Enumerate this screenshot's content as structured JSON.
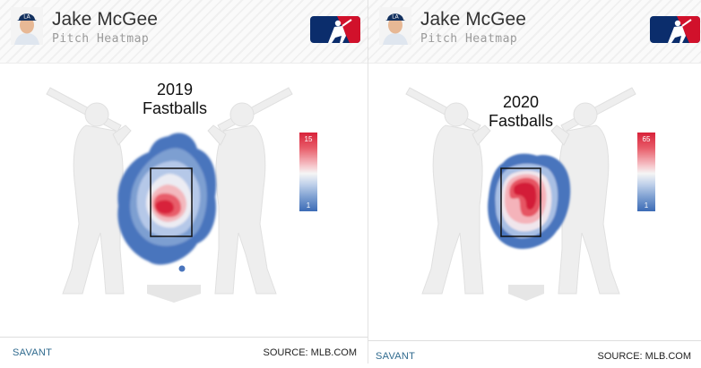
{
  "panels": [
    {
      "player_name": "Jake McGee",
      "subtitle": "Pitch Heatmap",
      "chart_title_year": "2019",
      "chart_title_pitch": "Fastballs",
      "scale_max": "15",
      "scale_min": "1",
      "footer_left": "SAVANT",
      "footer_right": "SOURCE: MLB.COM"
    },
    {
      "player_name": "Jake McGee",
      "subtitle": "Pitch Heatmap",
      "chart_title_year": "2020",
      "chart_title_pitch": "Fastballs",
      "scale_max": "65",
      "scale_min": "1",
      "footer_left": "SAVANT",
      "footer_right": "SOURCE: MLB.COM"
    }
  ],
  "colors": {
    "hot": "#e0263a",
    "cold": "#3c6bb6",
    "mlb_blue": "#0b2d6c",
    "mlb_red": "#d1112b"
  }
}
